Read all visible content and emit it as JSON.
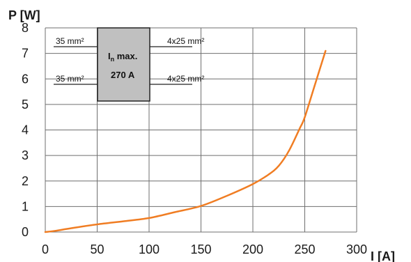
{
  "chart_data": {
    "type": "line",
    "xlabel": "I [A]",
    "ylabel": "P [W]",
    "xlim": [
      0,
      300
    ],
    "ylim": [
      0,
      8
    ],
    "x_ticks": [
      "0",
      "50",
      "100",
      "150",
      "200",
      "250",
      "300"
    ],
    "y_ticks": [
      "0",
      "1",
      "2",
      "3",
      "4",
      "5",
      "6",
      "7",
      "8"
    ],
    "grid": true,
    "series": [
      {
        "color": "#f07d23",
        "x": [
          0,
          10,
          25,
          50,
          75,
          100,
          125,
          150,
          175,
          200,
          215,
          225,
          235,
          245,
          250,
          260,
          270
        ],
        "y": [
          0,
          0.05,
          0.15,
          0.3,
          0.42,
          0.55,
          0.78,
          1.02,
          1.42,
          1.88,
          2.25,
          2.6,
          3.2,
          4.05,
          4.5,
          5.8,
          7.1
        ]
      }
    ],
    "annotation_box": {
      "line1_main": "I",
      "line1_sub": "n",
      "line1_rest": " max.",
      "line2": "270 A",
      "left_top": "35 mm²",
      "left_bottom": "35 mm²",
      "right_top": "4x25 mm²",
      "right_bottom": "4x25 mm²",
      "fill": "#c0c0c0"
    }
  }
}
